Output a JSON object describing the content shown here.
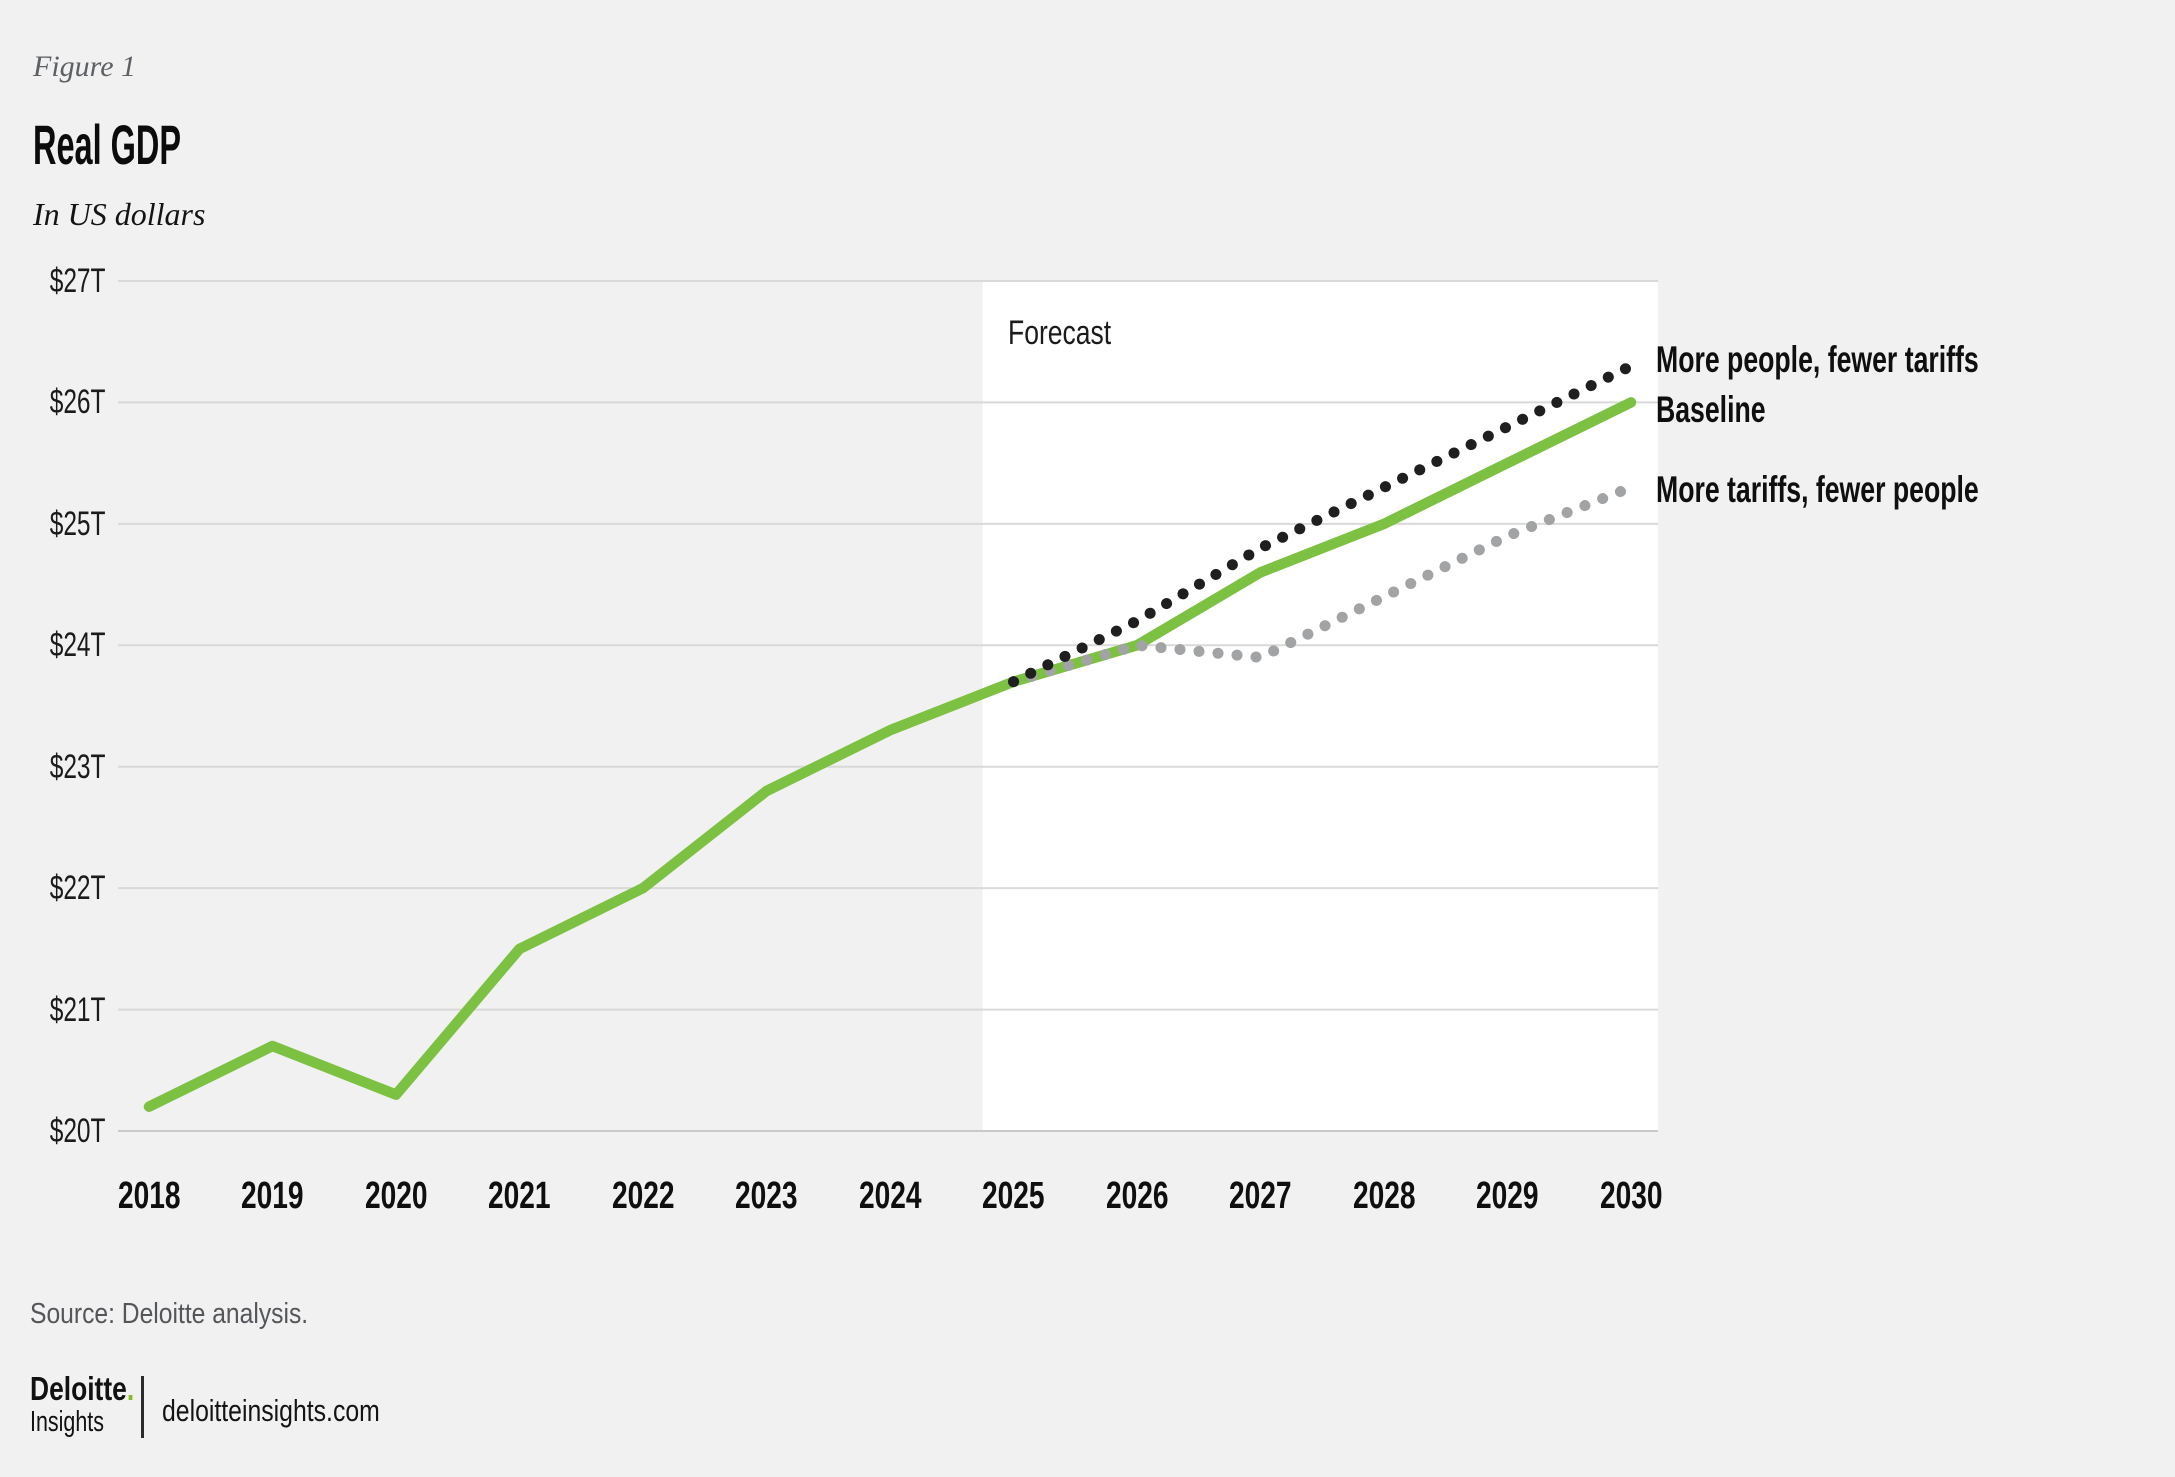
{
  "figure": {
    "label": "Figure 1",
    "title": "Real GDP",
    "subtitle": "In US dollars"
  },
  "chart_data": {
    "type": "line",
    "title": "Real GDP",
    "units": "US dollars, trillions",
    "x": [
      2018,
      2019,
      2020,
      2021,
      2022,
      2023,
      2024,
      2025,
      2026,
      2027,
      2028,
      2029,
      2030
    ],
    "series": [
      {
        "name": "Baseline",
        "color": "#7cc142",
        "style": "solid",
        "values": [
          20.2,
          20.7,
          20.3,
          21.5,
          22.0,
          22.8,
          23.3,
          23.7,
          24.0,
          24.6,
          25.0,
          25.5,
          26.0
        ]
      },
      {
        "name": "More people, fewer tariffs",
        "color": "#1f1f1f",
        "style": "dotted",
        "values": [
          null,
          null,
          null,
          null,
          null,
          null,
          null,
          23.7,
          24.2,
          24.8,
          25.3,
          25.8,
          26.3
        ]
      },
      {
        "name": "More tariffs, fewer people",
        "color": "#a2a3a5",
        "style": "dotted",
        "values": [
          null,
          null,
          null,
          null,
          null,
          null,
          null,
          23.7,
          24.0,
          23.9,
          24.4,
          24.9,
          25.3
        ]
      }
    ],
    "yticks": [
      {
        "value": 20,
        "label": "$20T"
      },
      {
        "value": 21,
        "label": "$21T"
      },
      {
        "value": 22,
        "label": "$22T"
      },
      {
        "value": 23,
        "label": "$23T"
      },
      {
        "value": 24,
        "label": "$24T"
      },
      {
        "value": 25,
        "label": "$25T"
      },
      {
        "value": 26,
        "label": "$26T"
      },
      {
        "value": 27,
        "label": "$27T"
      }
    ],
    "ylim": [
      20,
      27
    ],
    "grid": "horizontal",
    "legend_position": "right",
    "forecast": {
      "label": "Forecast",
      "boundary_year": 2024.75
    }
  },
  "colors": {
    "background": "#f0f1f0",
    "forecast_background": "#ffffff",
    "gridline": "#d9dad7",
    "axis_line": "#c9cac8",
    "accent_green": "#7cc142",
    "brand_green": "#86bc25"
  },
  "footer": {
    "source": "Source: Deloitte analysis.",
    "logo_brand": "Deloitte",
    "logo_dot": ".",
    "logo_sub": "Insights",
    "site": "deloitteinsights.com"
  }
}
